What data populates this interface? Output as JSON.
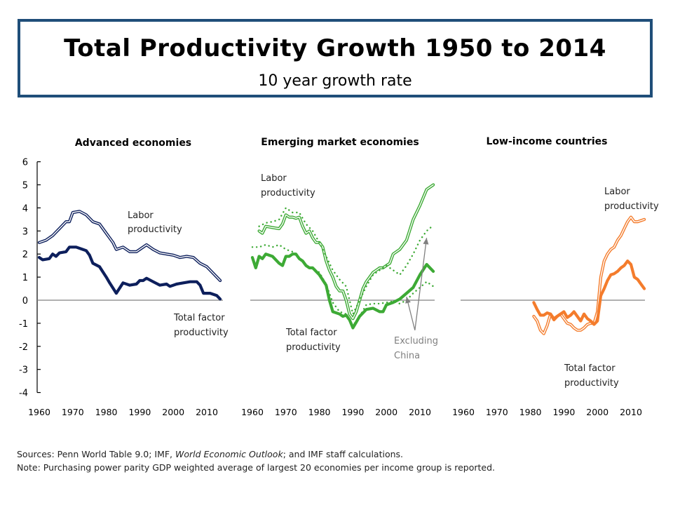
{
  "header": {
    "title": "Total Productivity Growth 1950 to 2014",
    "subtitle": "10 year growth rate"
  },
  "footer": {
    "sources_prefix": "Sources: Penn World Table 9.0; IMF, ",
    "sources_italic": "World Economic Outlook",
    "sources_suffix": ";  and IMF staff calculations.",
    "note": "Note: Purchasing power parity GDP weighted average of largest 20 economies per income group is reported."
  },
  "colors": {
    "advanced": "#0d1f5c",
    "emerging": "#3daa35",
    "low_income": "#f47c2c",
    "zero_line": "#808080",
    "arrow": "#808080",
    "title_border": "#1f4e79"
  },
  "chart_data": [
    {
      "type": "line",
      "title": "Advanced economies",
      "xlabel": "",
      "ylabel": "",
      "ylim": [
        -4,
        6
      ],
      "yticks": [
        "6",
        "5",
        "4",
        "3",
        "2",
        "1",
        "0",
        "-1",
        "-2",
        "-3",
        "-4"
      ],
      "xticks": [
        "1960",
        "1970",
        "1980",
        "1990",
        "2000",
        "2010"
      ],
      "annotations": [
        {
          "text": [
            "Labor",
            "productivity"
          ],
          "for": "labor"
        },
        {
          "text": [
            "Total factor",
            "productivity"
          ],
          "for": "tfp"
        }
      ],
      "series": [
        {
          "name": "Labor productivity",
          "style": "double",
          "x": [
            1960,
            1962,
            1964,
            1966,
            1968,
            1969,
            1970,
            1972,
            1974,
            1976,
            1978,
            1980,
            1982,
            1983,
            1985,
            1987,
            1989,
            1990,
            1992,
            1994,
            1996,
            1998,
            2000,
            2002,
            2004,
            2006,
            2008,
            2010,
            2012,
            2014
          ],
          "y": [
            2.5,
            2.6,
            2.8,
            3.1,
            3.4,
            3.4,
            3.8,
            3.85,
            3.7,
            3.4,
            3.3,
            2.9,
            2.5,
            2.2,
            2.3,
            2.1,
            2.1,
            2.2,
            2.4,
            2.2,
            2.05,
            2.0,
            1.95,
            1.85,
            1.9,
            1.85,
            1.6,
            1.45,
            1.15,
            0.85
          ]
        },
        {
          "name": "Total factor productivity",
          "style": "thick",
          "x": [
            1960,
            1961,
            1963,
            1964,
            1965,
            1966,
            1968,
            1969,
            1971,
            1973,
            1974,
            1975,
            1976,
            1978,
            1980,
            1981,
            1983,
            1985,
            1987,
            1989,
            1990,
            1991,
            1992,
            1994,
            1996,
            1998,
            1999,
            2001,
            2003,
            2005,
            2007,
            2008,
            2009,
            2011,
            2013,
            2014
          ],
          "y": [
            1.85,
            1.75,
            1.8,
            2.0,
            1.9,
            2.05,
            2.1,
            2.3,
            2.3,
            2.2,
            2.15,
            1.95,
            1.6,
            1.45,
            1.0,
            0.75,
            0.3,
            0.75,
            0.65,
            0.7,
            0.85,
            0.85,
            0.95,
            0.8,
            0.65,
            0.7,
            0.6,
            0.7,
            0.75,
            0.8,
            0.8,
            0.65,
            0.3,
            0.3,
            0.2,
            0.05
          ]
        }
      ]
    },
    {
      "type": "line",
      "title": "Emerging market economies",
      "xlabel": "",
      "ylabel": "",
      "ylim": [
        -4,
        6
      ],
      "xticks": [
        "1960",
        "1970",
        "1980",
        "1990",
        "2000",
        "2010"
      ],
      "annotations": [
        {
          "text": [
            "Labor",
            "productivity"
          ],
          "for": "labor"
        },
        {
          "text": [
            "Total factor",
            "productivity"
          ],
          "for": "tfp"
        },
        {
          "text": [
            "Excluding",
            "China"
          ],
          "for": "ex-china"
        }
      ],
      "series": [
        {
          "name": "Labor productivity",
          "style": "double",
          "x": [
            1962,
            1963,
            1964,
            1966,
            1968,
            1969,
            1970,
            1971,
            1972,
            1973,
            1974,
            1975,
            1976,
            1977,
            1978,
            1979,
            1980,
            1981,
            1982,
            1983,
            1984,
            1985,
            1986,
            1987,
            1988,
            1989,
            1990,
            1991,
            1992,
            1993,
            1994,
            1995,
            1996,
            1997,
            1998,
            1999,
            2000,
            2001,
            2002,
            2004,
            2006,
            2008,
            2010,
            2012,
            2014
          ],
          "y": [
            3.0,
            2.9,
            3.2,
            3.15,
            3.1,
            3.3,
            3.7,
            3.6,
            3.6,
            3.55,
            3.6,
            3.2,
            2.9,
            3.0,
            2.7,
            2.5,
            2.5,
            2.3,
            1.7,
            1.3,
            1.0,
            0.6,
            0.4,
            0.4,
            0.0,
            -0.6,
            -0.8,
            -0.5,
            0.0,
            0.5,
            0.8,
            1.0,
            1.2,
            1.3,
            1.4,
            1.4,
            1.5,
            1.6,
            2.0,
            2.2,
            2.6,
            3.5,
            4.1,
            4.8,
            5.0
          ]
        },
        {
          "name": "Labor productivity (excluding China)",
          "style": "dotted",
          "x": [
            1962,
            1964,
            1966,
            1968,
            1970,
            1972,
            1974,
            1976,
            1978,
            1980,
            1982,
            1984,
            1986,
            1988,
            1990,
            1992,
            1994,
            1996,
            1998,
            2000,
            2002,
            2004,
            2006,
            2008,
            2010,
            2012,
            2014
          ],
          "y": [
            3.2,
            3.35,
            3.4,
            3.5,
            4.0,
            3.8,
            3.8,
            3.3,
            3.0,
            2.5,
            1.9,
            1.3,
            0.9,
            0.6,
            -0.6,
            0.0,
            0.6,
            1.1,
            1.3,
            1.5,
            1.3,
            1.1,
            1.5,
            2.0,
            2.6,
            3.0,
            3.25
          ]
        },
        {
          "name": "Total factor productivity",
          "style": "thick",
          "x": [
            1960,
            1961,
            1962,
            1963,
            1964,
            1966,
            1968,
            1969,
            1970,
            1971,
            1972,
            1973,
            1974,
            1975,
            1976,
            1977,
            1978,
            1980,
            1982,
            1983,
            1984,
            1986,
            1987,
            1988,
            1989,
            1990,
            1991,
            1992,
            1994,
            1996,
            1998,
            1999,
            2000,
            2002,
            2004,
            2006,
            2008,
            2010,
            2012,
            2014
          ],
          "y": [
            1.85,
            1.4,
            1.9,
            1.8,
            2.0,
            1.9,
            1.6,
            1.5,
            1.9,
            1.9,
            2.0,
            2.0,
            1.8,
            1.7,
            1.5,
            1.4,
            1.4,
            1.1,
            0.65,
            0.0,
            -0.5,
            -0.6,
            -0.7,
            -0.65,
            -0.85,
            -1.2,
            -0.95,
            -0.7,
            -0.4,
            -0.35,
            -0.5,
            -0.5,
            -0.2,
            -0.1,
            0.05,
            0.3,
            0.55,
            1.1,
            1.55,
            1.25
          ]
        },
        {
          "name": "Total factor productivity (excluding China)",
          "style": "dotted",
          "x": [
            1960,
            1962,
            1964,
            1966,
            1968,
            1970,
            1972,
            1974,
            1976,
            1978,
            1980,
            1982,
            1984,
            1986,
            1988,
            1990,
            1992,
            1994,
            1996,
            1998,
            2000,
            2002,
            2004,
            2006,
            2008,
            2010,
            2012,
            2014
          ],
          "y": [
            2.3,
            2.3,
            2.4,
            2.3,
            2.4,
            2.2,
            2.1,
            1.8,
            1.5,
            1.4,
            1.2,
            0.7,
            -0.1,
            -0.5,
            -0.6,
            -1.1,
            -0.7,
            -0.2,
            -0.15,
            -0.15,
            -0.1,
            -0.05,
            -0.15,
            0.0,
            0.3,
            0.55,
            0.8,
            0.6
          ]
        }
      ],
      "arrows": [
        {
          "label": "Excluding China",
          "from": [
            2008.5,
            -1.3
          ],
          "to": [
            2006,
            0.15
          ]
        },
        {
          "label": "Excluding China",
          "from": [
            2008.5,
            -1.3
          ],
          "to": [
            2012,
            2.7
          ]
        }
      ]
    },
    {
      "type": "line",
      "title": "Low-income countries",
      "xlabel": "",
      "ylabel": "",
      "ylim": [
        -4,
        6
      ],
      "xticks": [
        "1960",
        "1970",
        "1980",
        "1990",
        "2000",
        "2010"
      ],
      "annotations": [
        {
          "text": [
            "Labor",
            "productivity"
          ],
          "for": "labor"
        },
        {
          "text": [
            "Total factor",
            "productivity"
          ],
          "for": "tfp"
        }
      ],
      "series": [
        {
          "name": "Labor productivity",
          "style": "double",
          "x": [
            1981,
            1982,
            1983,
            1984,
            1985,
            1986,
            1987,
            1988,
            1989,
            1990,
            1991,
            1992,
            1993,
            1994,
            1995,
            1996,
            1997,
            1998,
            1999,
            2000,
            2001,
            2002,
            2003,
            2004,
            2005,
            2006,
            2007,
            2008,
            2009,
            2010,
            2011,
            2012,
            2013,
            2014
          ],
          "y": [
            -0.7,
            -0.9,
            -1.3,
            -1.45,
            -1.1,
            -0.6,
            -0.8,
            -0.7,
            -0.6,
            -0.8,
            -1.0,
            -1.05,
            -1.2,
            -1.3,
            -1.3,
            -1.2,
            -1.05,
            -1.0,
            -1.0,
            -0.5,
            1.0,
            1.7,
            2.0,
            2.2,
            2.3,
            2.6,
            2.8,
            3.1,
            3.4,
            3.6,
            3.4,
            3.4,
            3.45,
            3.5
          ]
        },
        {
          "name": "Total factor productivity",
          "style": "thick",
          "x": [
            1981,
            1982,
            1983,
            1984,
            1985,
            1986,
            1987,
            1988,
            1990,
            1991,
            1992,
            1993,
            1994,
            1995,
            1996,
            1997,
            1998,
            1999,
            2000,
            2001,
            2002,
            2003,
            2004,
            2005,
            2006,
            2007,
            2008,
            2009,
            2010,
            2011,
            2012,
            2013,
            2014
          ],
          "y": [
            -0.1,
            -0.4,
            -0.65,
            -0.65,
            -0.55,
            -0.6,
            -0.85,
            -0.7,
            -0.5,
            -0.75,
            -0.65,
            -0.5,
            -0.7,
            -0.9,
            -0.6,
            -0.8,
            -0.9,
            -1.05,
            -0.9,
            0.2,
            0.5,
            0.85,
            1.1,
            1.15,
            1.25,
            1.4,
            1.5,
            1.7,
            1.55,
            1.0,
            0.9,
            0.7,
            0.5
          ]
        }
      ]
    }
  ]
}
